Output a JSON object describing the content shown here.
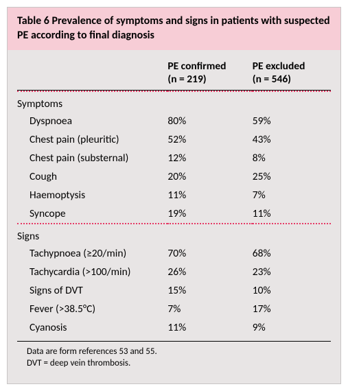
{
  "colors": {
    "outer_bg": "#e8e5e5",
    "title_bg": "#f7cdd6",
    "dotted_rule": "#e53965",
    "solid_rule": "#000000",
    "text": "#000000"
  },
  "typography": {
    "title_fontsize": 16,
    "body_fontsize": 15.5,
    "footnote_fontsize": 13,
    "font_family": "Gill Sans"
  },
  "table_number": "Table 6",
  "title": "Prevalence of symptoms and signs in patients with suspected PE according to final diagnosis",
  "columns": {
    "c1_label": "PE confirmed",
    "c1_n": "(n = 219)",
    "c2_label": "PE excluded",
    "c2_n": "(n = 546)"
  },
  "sections": [
    {
      "heading": "Symptoms",
      "rows": [
        {
          "label": "Dyspnoea",
          "v1": "80%",
          "v2": "59%"
        },
        {
          "label": "Chest pain (pleuritic)",
          "v1": "52%",
          "v2": "43%"
        },
        {
          "label": "Chest pain (substernal)",
          "v1": "12%",
          "v2": "8%"
        },
        {
          "label": "Cough",
          "v1": "20%",
          "v2": "25%"
        },
        {
          "label": "Haemoptysis",
          "v1": "11%",
          "v2": "7%"
        },
        {
          "label": "Syncope",
          "v1": "19%",
          "v2": "11%"
        }
      ]
    },
    {
      "heading": "Signs",
      "rows": [
        {
          "label": "Tachypnoea (≥20/min)",
          "v1": "70%",
          "v2": "68%"
        },
        {
          "label": "Tachycardia (>100/min)",
          "v1": "26%",
          "v2": "23%"
        },
        {
          "label": "Signs of DVT",
          "v1": "15%",
          "v2": "10%"
        },
        {
          "label": "Fever (>38.5°C)",
          "v1": "7%",
          "v2": "17%"
        },
        {
          "label": "Cyanosis",
          "v1": "11%",
          "v2": "9%"
        }
      ]
    }
  ],
  "footnote_line1": "Data are form references 53 and 55.",
  "footnote_line2": "DVT = deep vein thrombosis."
}
